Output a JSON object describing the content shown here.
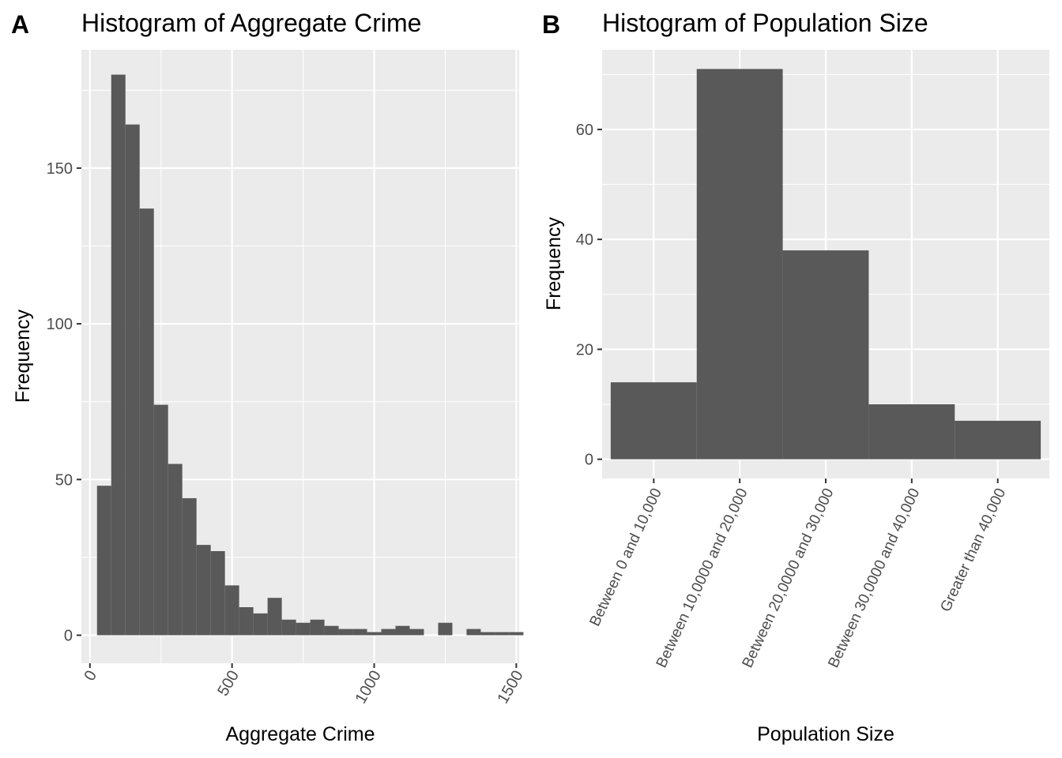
{
  "panels": [
    {
      "label": "A"
    },
    {
      "label": "B"
    }
  ],
  "chart_data": [
    {
      "type": "bar",
      "subtype": "histogram",
      "title": "Histogram of Aggregate Crime",
      "xlabel": "Aggregate Crime",
      "ylabel": "Frequency",
      "bin_width": 50,
      "bin_start": 25,
      "values": [
        48,
        180,
        164,
        137,
        74,
        55,
        44,
        29,
        27,
        16,
        9,
        7,
        12,
        5,
        4,
        5,
        3,
        2,
        2,
        1,
        2,
        3,
        2,
        0,
        4,
        0,
        2,
        1,
        1,
        1
      ],
      "xlim": [
        -30,
        1510
      ],
      "ylim": [
        -9,
        188
      ],
      "xticks": [
        0,
        500,
        1000,
        1500
      ],
      "xtick_labels": [
        "0",
        "500",
        "1000",
        "1500"
      ],
      "yticks": [
        0,
        50,
        100,
        150
      ],
      "ytick_labels": [
        "0",
        "50",
        "100",
        "150"
      ],
      "grid": true,
      "colors": {
        "bar": "#595959",
        "panel": "#ebebeb",
        "grid": "#ffffff"
      }
    },
    {
      "type": "bar",
      "title": "Histogram of Population Size",
      "xlabel": "Population Size",
      "ylabel": "Frequency",
      "categories": [
        "Between 0 and 10,000",
        "Between 10,0000 and 20,000",
        "Between 20,0000 and 30,000",
        "Between 30,0000 and 40,000",
        "Greater than 40,000"
      ],
      "values": [
        14,
        71,
        38,
        10,
        7
      ],
      "ylim": [
        -3.5,
        74.5
      ],
      "yticks": [
        0,
        20,
        40,
        60
      ],
      "ytick_labels": [
        "0",
        "20",
        "40",
        "60"
      ],
      "grid": true,
      "colors": {
        "bar": "#595959",
        "panel": "#ebebeb",
        "grid": "#ffffff"
      }
    }
  ]
}
